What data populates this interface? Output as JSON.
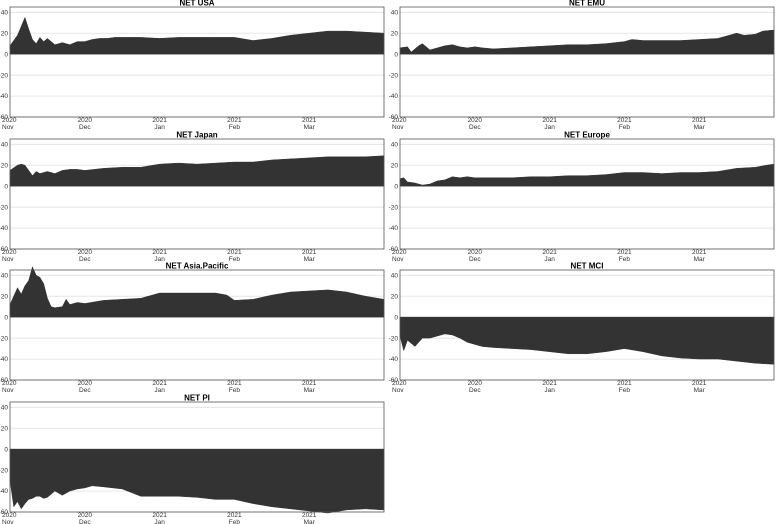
{
  "chart_data": [
    {
      "type": "area",
      "title": "NET USA",
      "x_ticks": [
        [
          "2020",
          "Nov"
        ],
        [
          "2020",
          "Dec"
        ],
        [
          "2021",
          "Jan"
        ],
        [
          "2021",
          "Feb"
        ],
        [
          "2021",
          "Mar"
        ]
      ],
      "ylim": [
        -60,
        45
      ],
      "yticks": [
        40,
        20,
        0,
        -20,
        -40,
        -60
      ],
      "grid": true,
      "x": [
        0,
        2,
        4,
        5,
        6,
        7,
        8,
        9,
        10,
        12,
        14,
        16,
        18,
        20,
        22,
        24,
        26,
        28,
        30,
        35,
        40,
        45,
        50,
        55,
        60,
        65,
        70,
        75,
        80,
        85,
        90,
        95,
        100
      ],
      "values": [
        8,
        18,
        35,
        24,
        14,
        10,
        16,
        12,
        15,
        9,
        11,
        9,
        12,
        12,
        14,
        15,
        15,
        16,
        16,
        16,
        15,
        16,
        16,
        16,
        16,
        13,
        15,
        18,
        20,
        22,
        22,
        21,
        20
      ]
    },
    {
      "type": "area",
      "title": "NET EMU",
      "x_ticks": [
        [
          "2020",
          "Nov"
        ],
        [
          "2020",
          "Dec"
        ],
        [
          "2021",
          "Jan"
        ],
        [
          "2021",
          "Feb"
        ],
        [
          "2021",
          "Mar"
        ]
      ],
      "ylim": [
        -60,
        45
      ],
      "yticks": [
        40,
        20,
        0,
        -20,
        -40,
        -60
      ],
      "grid": true,
      "x": [
        0,
        2,
        3,
        5,
        6,
        8,
        10,
        12,
        14,
        16,
        18,
        20,
        22,
        25,
        30,
        35,
        40,
        45,
        50,
        55,
        60,
        62,
        65,
        70,
        75,
        80,
        85,
        90,
        92,
        95,
        97,
        100
      ],
      "values": [
        6,
        7,
        2,
        8,
        10,
        4,
        6,
        8,
        9,
        7,
        6,
        7,
        6,
        5,
        6,
        7,
        8,
        9,
        9,
        10,
        12,
        14,
        13,
        13,
        13,
        14,
        15,
        20,
        18,
        19,
        22,
        23
      ]
    },
    {
      "type": "area",
      "title": "NET Japan",
      "x_ticks": [
        [
          "2020",
          "Nov"
        ],
        [
          "2020",
          "Dec"
        ],
        [
          "2021",
          "Jan"
        ],
        [
          "2021",
          "Feb"
        ],
        [
          "2021",
          "Mar"
        ]
      ],
      "ylim": [
        -60,
        45
      ],
      "yticks": [
        40,
        20,
        0,
        -20,
        -40,
        -60
      ],
      "grid": true,
      "x": [
        0,
        2,
        3,
        4,
        6,
        7,
        8,
        10,
        12,
        14,
        16,
        18,
        20,
        25,
        30,
        35,
        40,
        45,
        50,
        55,
        60,
        65,
        70,
        75,
        80,
        85,
        90,
        95,
        100
      ],
      "values": [
        15,
        20,
        21,
        20,
        10,
        14,
        12,
        14,
        12,
        15,
        16,
        16,
        15,
        17,
        18,
        18,
        21,
        22,
        21,
        22,
        23,
        23,
        25,
        26,
        27,
        28,
        28,
        28,
        29
      ]
    },
    {
      "type": "area",
      "title": "NET Europe",
      "x_ticks": [
        [
          "2020",
          "Nov"
        ],
        [
          "2020",
          "Dec"
        ],
        [
          "2021",
          "Jan"
        ],
        [
          "2021",
          "Feb"
        ],
        [
          "2021",
          "Mar"
        ]
      ],
      "ylim": [
        -60,
        45
      ],
      "yticks": [
        40,
        20,
        0,
        -20,
        -40,
        -60
      ],
      "grid": true,
      "x": [
        0,
        1,
        2,
        4,
        6,
        8,
        10,
        12,
        14,
        16,
        18,
        20,
        25,
        30,
        35,
        40,
        45,
        50,
        55,
        60,
        65,
        70,
        75,
        80,
        85,
        90,
        95,
        98,
        100
      ],
      "values": [
        7,
        8,
        4,
        3,
        1,
        2,
        5,
        6,
        9,
        8,
        9,
        8,
        8,
        8,
        9,
        9,
        10,
        10,
        11,
        13,
        13,
        12,
        13,
        13,
        14,
        17,
        18,
        20,
        21
      ]
    },
    {
      "type": "area",
      "title": "NET Asia.Pacific",
      "x_ticks": [
        [
          "2020",
          "Nov"
        ],
        [
          "2020",
          "Dec"
        ],
        [
          "2021",
          "Jan"
        ],
        [
          "2021",
          "Feb"
        ],
        [
          "2021",
          "Mar"
        ]
      ],
      "ylim": [
        -60,
        45
      ],
      "yticks": [
        40,
        20,
        0,
        -20,
        -40,
        -60
      ],
      "grid": true,
      "x": [
        0,
        2,
        3,
        4,
        5,
        6,
        7,
        8,
        9,
        10,
        11,
        12,
        14,
        15,
        16,
        18,
        20,
        25,
        30,
        35,
        40,
        45,
        50,
        55,
        58,
        60,
        65,
        70,
        75,
        80,
        85,
        90,
        95,
        100
      ],
      "values": [
        12,
        28,
        22,
        30,
        35,
        48,
        40,
        38,
        32,
        18,
        10,
        9,
        10,
        17,
        12,
        14,
        13,
        16,
        17,
        18,
        23,
        23,
        23,
        23,
        21,
        16,
        17,
        21,
        24,
        25,
        26,
        24,
        20,
        17
      ]
    },
    {
      "type": "area",
      "title": "NET MCI",
      "x_ticks": [
        [
          "2020",
          "Nov"
        ],
        [
          "2020",
          "Dec"
        ],
        [
          "2021",
          "Jan"
        ],
        [
          "2021",
          "Feb"
        ],
        [
          "2021",
          "Mar"
        ]
      ],
      "ylim": [
        -60,
        45
      ],
      "yticks": [
        40,
        20,
        0,
        -20,
        -40,
        -60
      ],
      "grid": true,
      "x": [
        0,
        1,
        2,
        3,
        4,
        5,
        6,
        8,
        10,
        12,
        14,
        16,
        18,
        20,
        22,
        25,
        30,
        35,
        40,
        45,
        50,
        55,
        60,
        65,
        70,
        75,
        80,
        85,
        90,
        95,
        100
      ],
      "values": [
        -18,
        -32,
        -22,
        -25,
        -28,
        -24,
        -20,
        -20,
        -18,
        -16,
        -17,
        -20,
        -24,
        -26,
        -28,
        -29,
        -30,
        -31,
        -33,
        -35,
        -35,
        -33,
        -30,
        -33,
        -37,
        -39,
        -40,
        -40,
        -42,
        -44,
        -45
      ]
    },
    {
      "type": "area",
      "title": "NET PI",
      "x_ticks": [
        [
          "2020",
          "Nov"
        ],
        [
          "2020",
          "Dec"
        ],
        [
          "2021",
          "Jan"
        ],
        [
          "2021",
          "Feb"
        ],
        [
          "2021",
          "Mar"
        ]
      ],
      "ylim": [
        -60,
        45
      ],
      "yticks": [
        40,
        20,
        0,
        -20,
        -40,
        -60
      ],
      "grid": true,
      "x": [
        0,
        1,
        2,
        3,
        4,
        5,
        6,
        7,
        8,
        9,
        10,
        12,
        14,
        16,
        18,
        20,
        22,
        25,
        30,
        35,
        40,
        45,
        50,
        55,
        60,
        65,
        70,
        75,
        80,
        85,
        90,
        95,
        100
      ],
      "values": [
        -30,
        -55,
        -50,
        -57,
        -52,
        -48,
        -47,
        -45,
        -45,
        -47,
        -46,
        -40,
        -44,
        -40,
        -38,
        -37,
        -35,
        -36,
        -38,
        -45,
        -45,
        -45,
        -46,
        -48,
        -48,
        -52,
        -55,
        -57,
        -59,
        -61,
        -58,
        -57,
        -58
      ]
    }
  ],
  "colors": {
    "fill": "#333333",
    "grid": "#d9d9d9",
    "frame": "#555555",
    "zero": "#bbbbbb"
  }
}
